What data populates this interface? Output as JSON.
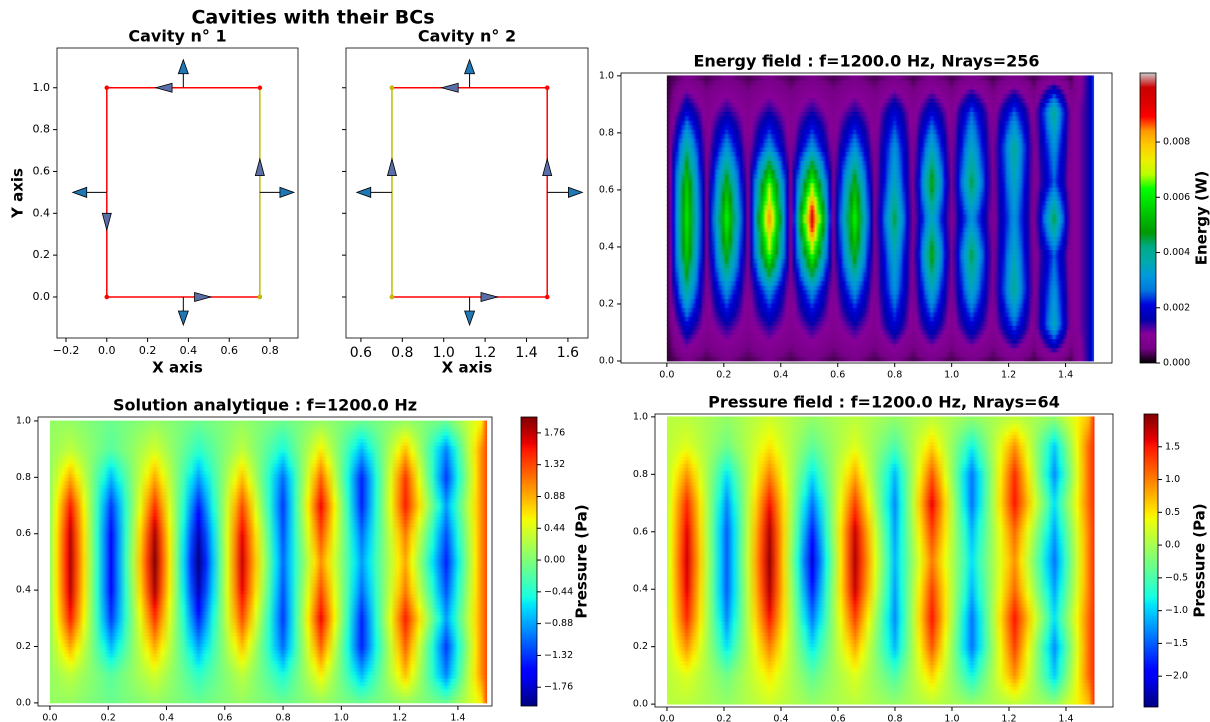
{
  "title": "Cavities with their BCs",
  "chart_data": [
    {
      "type": "geometry",
      "title": "Cavity n° 1",
      "xlabel": "X axis",
      "ylabel": "Y axis",
      "xlim": [
        -0.244,
        0.937
      ],
      "ylim": [
        -0.196,
        1.19
      ],
      "xticks": [
        {
          "value": -0.2,
          "label": "−0.2"
        },
        {
          "value": 0,
          "label": "0.0"
        },
        0.2,
        0.4,
        0.6,
        0.8
      ],
      "yticks": [
        {
          "value": 0,
          "label": "0.0"
        },
        0.2,
        0.4,
        0.6,
        0.8,
        {
          "value": 1,
          "label": "1.0"
        }
      ],
      "edges": [
        {
          "color": "#ff0000",
          "x": [
            0,
            0.75
          ],
          "y": [
            0,
            0
          ]
        },
        {
          "color": "#bfbf00",
          "x": [
            0.75,
            0.75
          ],
          "y": [
            0,
            1
          ]
        },
        {
          "color": "#ff0000",
          "x": [
            0.75,
            0
          ],
          "y": [
            1,
            1
          ]
        },
        {
          "color": "#ff0000",
          "x": [
            0,
            0
          ],
          "y": [
            1,
            0
          ]
        }
      ],
      "normals": [
        {
          "x": 0.375,
          "y": 0,
          "dx": 0,
          "dy": -0.134
        },
        {
          "x": 0.75,
          "y": 0.5,
          "dx": 0.167,
          "dy": 0
        },
        {
          "x": 0.375,
          "y": 1,
          "dx": 0,
          "dy": 0.134
        },
        {
          "x": 0,
          "y": 0.5,
          "dx": -0.167,
          "dy": 0
        }
      ],
      "tangents": [
        {
          "x": 0.47,
          "y": 0,
          "dx": 0.08,
          "dy": 0
        },
        {
          "x": 0.75,
          "y": 0.62,
          "dx": 0,
          "dy": 0.08
        },
        {
          "x": 0.28,
          "y": 1,
          "dx": -0.08,
          "dy": 0
        },
        {
          "x": 0,
          "y": 0.36,
          "dx": 0,
          "dy": -0.08
        }
      ]
    },
    {
      "type": "geometry",
      "title": "Cavity n° 2",
      "xlabel": "X axis",
      "xlim": [
        0.528,
        1.697
      ],
      "ylim": [
        -0.196,
        1.19
      ],
      "xticks": [
        0.6,
        0.8,
        {
          "value": 1,
          "label": "1.0"
        },
        1.2,
        1.4,
        1.6
      ],
      "yticks": [
        0,
        0.2,
        0.4,
        0.6,
        0.8,
        1
      ],
      "ytick_labels": false,
      "edges": [
        {
          "color": "#ff0000",
          "x": [
            0.75,
            1.5
          ],
          "y": [
            0,
            0
          ]
        },
        {
          "color": "#ff0000",
          "x": [
            1.5,
            1.5
          ],
          "y": [
            0,
            1
          ]
        },
        {
          "color": "#ff0000",
          "x": [
            1.5,
            0.75
          ],
          "y": [
            1,
            1
          ]
        },
        {
          "color": "#bfbf00",
          "x": [
            0.75,
            0.75
          ],
          "y": [
            1,
            0
          ]
        }
      ],
      "normals": [
        {
          "x": 1.125,
          "y": 0,
          "dx": 0,
          "dy": -0.134
        },
        {
          "x": 1.5,
          "y": 0.5,
          "dx": 0.17,
          "dy": 0
        },
        {
          "x": 1.125,
          "y": 1,
          "dx": 0,
          "dy": 0.134
        },
        {
          "x": 0.75,
          "y": 0.5,
          "dx": -0.17,
          "dy": 0
        }
      ],
      "tangents": [
        {
          "x": 1.22,
          "y": 0,
          "dx": 0.08,
          "dy": 0
        },
        {
          "x": 1.5,
          "y": 0.62,
          "dx": 0,
          "dy": 0.08
        },
        {
          "x": 1.03,
          "y": 1,
          "dx": -0.08,
          "dy": 0
        },
        {
          "x": 0.75,
          "y": 0.62,
          "dx": 0,
          "dy": 0.08
        }
      ]
    },
    {
      "type": "heatmap",
      "title": "Energy field : f=1200.0 Hz, Nrays=256",
      "colormap": "nipy_spectral",
      "clabel": "Energy (W)",
      "xlim": [
        -0.161,
        1.563
      ],
      "ylim": [
        -0.007,
        1.01
      ],
      "xticks": [
        {
          "value": 0,
          "label": "0.0"
        },
        0.2,
        0.4,
        0.6,
        0.8,
        {
          "value": 1,
          "label": "1.0"
        },
        1.2,
        1.4
      ],
      "yticks": [
        {
          "value": 0,
          "label": "0.0"
        },
        0.2,
        0.4,
        0.6,
        0.8,
        {
          "value": 1,
          "label": "1.0"
        }
      ],
      "clim": [
        0,
        0.0105
      ],
      "cticks": [
        {
          "value": 0,
          "label": "0.000"
        },
        0.002,
        0.004,
        0.006,
        0.008
      ],
      "x": [
        0,
        0.07,
        0.14,
        0.21,
        0.285,
        0.36,
        0.435,
        0.51,
        0.585,
        0.66,
        0.73,
        0.8,
        0.865,
        0.93,
        1.0,
        1.07,
        1.145,
        1.22,
        1.29,
        1.36,
        1.42,
        1.48,
        1.5
      ],
      "y": [
        0,
        0.125,
        0.25,
        0.375,
        0.5,
        0.625,
        0.75,
        0.875,
        1
      ],
      "z": [
        [
          0.0002,
          0.0005,
          0.0003,
          0.0005,
          0.0003,
          0.0005,
          0.0003,
          0.0005,
          0.0003,
          0.0005,
          0.0003,
          0.0005,
          0.0003,
          0.0005,
          0.0003,
          0.0005,
          0.0003,
          0.0005,
          0.0003,
          0.0005,
          0.0003,
          0.0015,
          0.0025
        ],
        [
          0.0002,
          0.002,
          0.0008,
          0.0015,
          0.0008,
          0.0015,
          0.0008,
          0.0015,
          0.0008,
          0.0015,
          0.0008,
          0.002,
          0.0008,
          0.002,
          0.0008,
          0.002,
          0.0008,
          0.0025,
          0.0008,
          0.0035,
          0.0008,
          0.0015,
          0.0025
        ],
        [
          0.0002,
          0.004,
          0.0008,
          0.003,
          0.0008,
          0.003,
          0.0008,
          0.003,
          0.0008,
          0.003,
          0.0008,
          0.003,
          0.0008,
          0.0035,
          0.0008,
          0.0035,
          0.0008,
          0.004,
          0.0008,
          0.003,
          0.0008,
          0.0015,
          0.0025
        ],
        [
          0.0002,
          0.0055,
          0.0008,
          0.005,
          0.0008,
          0.0065,
          0.0008,
          0.0065,
          0.0008,
          0.005,
          0.0008,
          0.0035,
          0.0008,
          0.005,
          0.0008,
          0.0045,
          0.0008,
          0.0035,
          0.0008,
          0.0025,
          0.0008,
          0.0015,
          0.0025
        ],
        [
          0.0002,
          0.006,
          0.0008,
          0.0062,
          0.0008,
          0.0085,
          0.0008,
          0.0098,
          0.0008,
          0.0062,
          0.0008,
          0.0045,
          0.0008,
          0.0035,
          0.0008,
          0.003,
          0.0008,
          0.003,
          0.0008,
          0.0045,
          0.0008,
          0.0015,
          0.0025
        ],
        [
          0.0002,
          0.0055,
          0.0008,
          0.005,
          0.0008,
          0.0065,
          0.0008,
          0.0065,
          0.0008,
          0.005,
          0.0008,
          0.0035,
          0.0008,
          0.005,
          0.0008,
          0.0045,
          0.0008,
          0.0035,
          0.0008,
          0.0025,
          0.0008,
          0.0015,
          0.0025
        ],
        [
          0.0002,
          0.004,
          0.0008,
          0.003,
          0.0008,
          0.003,
          0.0008,
          0.003,
          0.0008,
          0.003,
          0.0008,
          0.003,
          0.0008,
          0.0035,
          0.0008,
          0.0035,
          0.0008,
          0.004,
          0.0008,
          0.003,
          0.0008,
          0.0015,
          0.0025
        ],
        [
          0.0002,
          0.002,
          0.0008,
          0.0015,
          0.0008,
          0.0015,
          0.0008,
          0.0015,
          0.0008,
          0.0015,
          0.0008,
          0.002,
          0.0008,
          0.002,
          0.0008,
          0.0025,
          0.0008,
          0.0025,
          0.0008,
          0.004,
          0.0008,
          0.0015,
          0.0025
        ],
        [
          0.0002,
          0.0005,
          0.0003,
          0.0005,
          0.0003,
          0.0005,
          0.0003,
          0.0005,
          0.0003,
          0.0005,
          0.0003,
          0.0005,
          0.0003,
          0.0005,
          0.0003,
          0.0005,
          0.0003,
          0.0005,
          0.0003,
          0.0005,
          0.0003,
          0.0015,
          0.0025
        ]
      ]
    },
    {
      "type": "heatmap",
      "title": "Solution analytique : f=1200.0 Hz",
      "colormap": "jet",
      "clabel": "Pressure (Pa)",
      "xlim": [
        -0.041,
        1.517
      ],
      "ylim": [
        -0.011,
        1.014
      ],
      "xticks": [
        {
          "value": 0,
          "label": "0.0"
        },
        0.2,
        0.4,
        0.6,
        0.8,
        {
          "value": 1,
          "label": "1.0"
        },
        1.2,
        1.4
      ],
      "yticks": [
        {
          "value": 0,
          "label": "0.0"
        },
        0.2,
        0.4,
        0.6,
        0.8,
        {
          "value": 1,
          "label": "1.0"
        }
      ],
      "clim": [
        -2.02,
        1.98
      ],
      "cticks": [
        {
          "value": -1.76,
          "label": "−1.76"
        },
        {
          "value": -1.32,
          "label": "−1.32"
        },
        {
          "value": -0.88,
          "label": "−0.88"
        },
        {
          "value": -0.44,
          "label": "−0.44"
        },
        {
          "value": 0,
          "label": "0.00"
        },
        0.44,
        0.88,
        1.32,
        1.76
      ],
      "x": [
        0,
        0.07,
        0.21,
        0.36,
        0.51,
        0.66,
        0.8,
        0.93,
        1.07,
        1.22,
        1.36,
        1.48,
        1.5
      ],
      "y": [
        0,
        0.1,
        0.2,
        0.3,
        0.4,
        0.5,
        0.6,
        0.7,
        0.8,
        0.9,
        1
      ],
      "z": [
        [
          0.1,
          0.1,
          -0.1,
          0.1,
          -0.1,
          0.1,
          -0.1,
          0.1,
          -0.1,
          0.1,
          -0.1,
          0.6,
          1.3
        ],
        [
          0.1,
          0.3,
          -0.2,
          0.4,
          -0.4,
          0.3,
          -0.5,
          0.6,
          -0.8,
          0.8,
          -1.0,
          1.0,
          1.3
        ],
        [
          0.1,
          0.9,
          -0.8,
          0.9,
          -0.9,
          0.8,
          -1.1,
          1.2,
          -1.4,
          1.2,
          -1.3,
          1.0,
          1.3
        ],
        [
          0.1,
          1.5,
          -1.3,
          1.4,
          -1.4,
          1.3,
          -1.3,
          1.6,
          -1.4,
          1.5,
          -0.9,
          1.0,
          1.3
        ],
        [
          0.1,
          1.75,
          -1.5,
          1.8,
          -1.8,
          1.6,
          -1.2,
          1.3,
          -1.1,
          1.1,
          -1.2,
          1.0,
          1.3
        ],
        [
          0.1,
          1.8,
          -1.5,
          1.95,
          -2.0,
          1.7,
          -1.1,
          1.0,
          -0.9,
          0.9,
          -1.4,
          1.0,
          1.3
        ],
        [
          0.1,
          1.75,
          -1.5,
          1.8,
          -1.8,
          1.6,
          -1.2,
          1.3,
          -1.1,
          1.1,
          -1.2,
          1.0,
          1.3
        ],
        [
          0.1,
          1.5,
          -1.3,
          1.4,
          -1.4,
          1.3,
          -1.3,
          1.6,
          -1.4,
          1.5,
          -0.9,
          1.0,
          1.3
        ],
        [
          0.1,
          0.9,
          -0.8,
          0.9,
          -0.9,
          0.8,
          -1.1,
          1.2,
          -1.4,
          1.4,
          -1.3,
          1.0,
          1.3
        ],
        [
          0.1,
          0.3,
          -0.2,
          0.4,
          -0.4,
          0.3,
          -0.5,
          0.6,
          -0.8,
          0.8,
          -1.0,
          1.0,
          1.3
        ],
        [
          0.1,
          0.1,
          -0.1,
          0.1,
          -0.1,
          0.1,
          -0.1,
          0.1,
          -0.1,
          0.1,
          -0.1,
          0.6,
          1.3
        ]
      ]
    },
    {
      "type": "heatmap",
      "title": "Pressure field : f=1200.0 Hz, Nrays=64",
      "colormap": "jet",
      "clabel": "Pressure (Pa)",
      "xlim": [
        -0.042,
        1.565
      ],
      "ylim": [
        -0.01,
        1.01
      ],
      "xticks": [
        {
          "value": 0,
          "label": "0.0"
        },
        0.2,
        0.4,
        0.6,
        0.8,
        {
          "value": 1,
          "label": "1.0"
        },
        1.2,
        1.4
      ],
      "yticks": [
        {
          "value": 0,
          "label": "0.0"
        },
        0.2,
        0.4,
        0.6,
        0.8,
        {
          "value": 1,
          "label": "1.0"
        }
      ],
      "clim": [
        -2.47,
        2.0
      ],
      "cticks": [
        {
          "value": -2,
          "label": "−2.0"
        },
        {
          "value": -1.5,
          "label": "−1.5"
        },
        {
          "value": -1,
          "label": "−1.0"
        },
        {
          "value": -0.5,
          "label": "−0.5"
        },
        {
          "value": 0,
          "label": "0.0"
        },
        0.5,
        {
          "value": 1,
          "label": "1.0"
        },
        1.5
      ],
      "x": [
        0,
        0.07,
        0.21,
        0.36,
        0.51,
        0.66,
        0.8,
        0.93,
        1.07,
        1.22,
        1.36,
        1.48,
        1.5
      ],
      "y": [
        0,
        0.1,
        0.2,
        0.3,
        0.4,
        0.5,
        0.6,
        0.7,
        0.8,
        0.9,
        1
      ],
      "z": [
        [
          0.1,
          0.1,
          -0.1,
          0.2,
          -0.1,
          0.1,
          -0.1,
          0.1,
          -0.1,
          0.1,
          -0.1,
          0.7,
          1.4
        ],
        [
          0.1,
          0.3,
          -0.3,
          0.5,
          -0.4,
          0.3,
          -0.5,
          0.6,
          -0.8,
          0.9,
          -1.0,
          1.1,
          1.4
        ],
        [
          0.1,
          0.9,
          -0.9,
          1.0,
          -0.9,
          0.8,
          -1.1,
          1.2,
          -1.4,
          1.3,
          -1.3,
          1.1,
          1.4
        ],
        [
          0.1,
          1.4,
          -1.3,
          1.5,
          -1.4,
          1.3,
          -1.3,
          1.5,
          -1.4,
          1.5,
          -0.9,
          1.1,
          1.4
        ],
        [
          0.1,
          1.6,
          -1.5,
          1.8,
          -1.8,
          1.7,
          -1.2,
          1.3,
          -1.1,
          1.1,
          -1.2,
          1.0,
          1.4
        ],
        [
          0.1,
          1.7,
          -1.5,
          1.9,
          -2.1,
          1.8,
          -1.1,
          1.0,
          -0.9,
          0.9,
          -1.4,
          1.0,
          1.4
        ],
        [
          0.1,
          1.6,
          -1.5,
          1.8,
          -1.8,
          1.7,
          -1.2,
          1.3,
          -1.1,
          1.1,
          -1.2,
          1.0,
          1.4
        ],
        [
          0.1,
          1.4,
          -1.3,
          1.5,
          -1.4,
          1.3,
          -1.3,
          1.6,
          -1.4,
          1.5,
          -0.9,
          1.1,
          1.4
        ],
        [
          0.1,
          0.9,
          -0.9,
          1.0,
          -0.9,
          0.8,
          -1.1,
          1.2,
          -1.4,
          1.4,
          -1.3,
          1.1,
          1.4
        ],
        [
          0.1,
          0.3,
          -0.3,
          0.5,
          -0.4,
          0.3,
          -0.5,
          0.6,
          -0.8,
          0.9,
          -1.0,
          1.1,
          1.4
        ],
        [
          0.1,
          0.1,
          -0.1,
          0.2,
          -0.1,
          0.1,
          -0.1,
          0.1,
          -0.1,
          0.1,
          -0.1,
          0.7,
          1.4
        ]
      ]
    }
  ]
}
